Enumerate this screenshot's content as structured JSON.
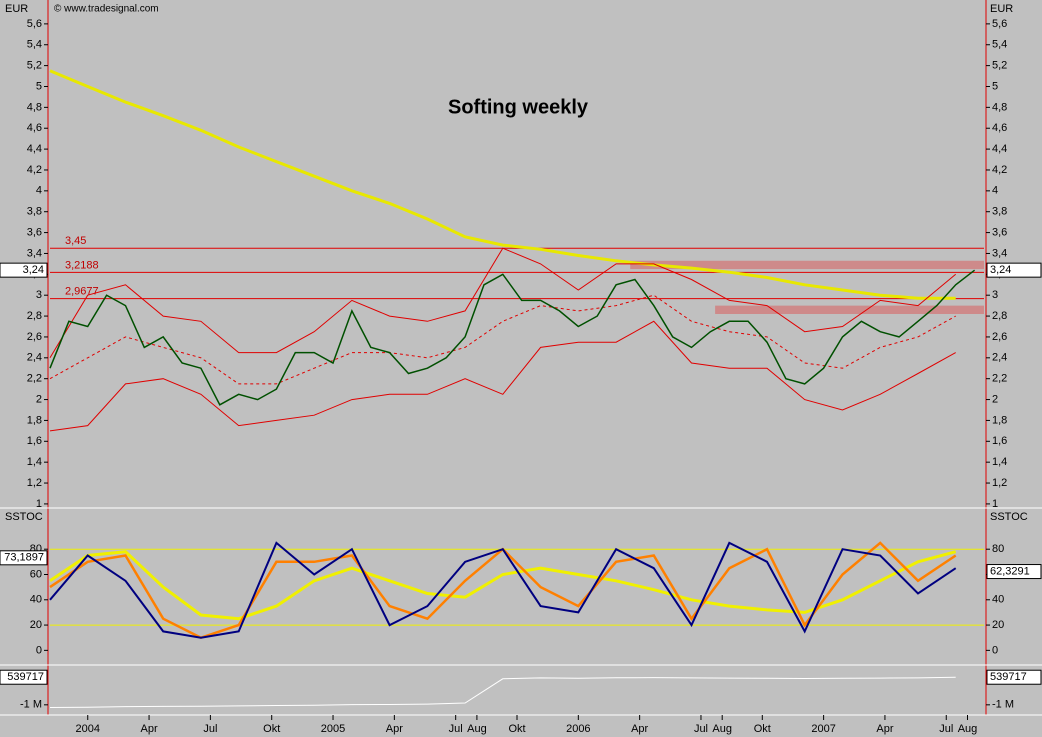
{
  "chart_data": [
    {
      "type": "line",
      "title": "Softing weekly",
      "unit": "EUR",
      "source": "© www.tradesignal.com",
      "xlim": [
        -8,
        190
      ],
      "ylim": [
        0.98,
        5.8
      ],
      "xticks": [
        {
          "value": 0,
          "label": "2004"
        },
        {
          "value": 13,
          "label": "Apr"
        },
        {
          "value": 26,
          "label": "Jul"
        },
        {
          "value": 39,
          "label": "Okt"
        },
        {
          "value": 52,
          "label": "2005"
        },
        {
          "value": 65,
          "label": "Apr"
        },
        {
          "value": 78,
          "label": "Jul"
        },
        {
          "value": 82.5,
          "label": "Aug"
        },
        {
          "value": 91,
          "label": "Okt"
        },
        {
          "value": 104,
          "label": "2006"
        },
        {
          "value": 117,
          "label": "Apr"
        },
        {
          "value": 130,
          "label": "Jul"
        },
        {
          "value": 134.5,
          "label": "Aug"
        },
        {
          "value": 143,
          "label": "Okt"
        },
        {
          "value": 156,
          "label": "2007"
        },
        {
          "value": 169,
          "label": "Apr"
        },
        {
          "value": 182,
          "label": "Jul"
        },
        {
          "value": 186.5,
          "label": "Aug"
        }
      ],
      "yticks": [
        1,
        {
          "value": 1.2,
          "label": "1,2"
        },
        {
          "value": 1.4,
          "label": "1,4"
        },
        {
          "value": 1.6,
          "label": "1,6"
        },
        {
          "value": 1.8,
          "label": "1,8"
        },
        2,
        {
          "value": 2.2,
          "label": "2,2"
        },
        {
          "value": 2.4,
          "label": "2,4"
        },
        {
          "value": 2.6,
          "label": "2,6"
        },
        {
          "value": 2.8,
          "label": "2,8"
        },
        3,
        {
          "value": 3.2,
          "label": "3,2"
        },
        {
          "value": 3.4,
          "label": "3,4"
        },
        {
          "value": 3.6,
          "label": "3,6"
        },
        {
          "value": 3.8,
          "label": "3,8"
        },
        4,
        {
          "value": 4.2,
          "label": "4,2"
        },
        {
          "value": 4.4,
          "label": "4,4"
        },
        {
          "value": 4.6,
          "label": "4,6"
        },
        {
          "value": 4.8,
          "label": "4,8"
        },
        5,
        {
          "value": 5.2,
          "label": "5,2"
        },
        {
          "value": 5.4,
          "label": "5,4"
        },
        {
          "value": 5.6,
          "label": "5,6"
        }
      ],
      "levels": [
        {
          "value": 3.45,
          "label": "3,45"
        },
        {
          "value": 3.2188,
          "label": "3,2188"
        },
        {
          "value": 2.9677,
          "label": "2,9677"
        }
      ],
      "zones": [
        {
          "x": [
            115,
            190
          ],
          "y": [
            3.25,
            3.33
          ]
        },
        {
          "x": [
            133,
            190
          ],
          "y": [
            2.82,
            2.9
          ]
        }
      ],
      "last_price": {
        "value": 3.24,
        "label": "3,24"
      },
      "series": [
        {
          "color": "#e8e800",
          "width": 3,
          "x": [
            -8,
            0,
            8,
            16,
            24,
            32,
            40,
            48,
            56,
            64,
            72,
            80,
            88,
            96,
            104,
            112,
            120,
            128,
            136,
            144,
            152,
            160,
            168,
            176,
            184
          ],
          "values": [
            5.15,
            5.0,
            4.85,
            4.72,
            4.58,
            4.42,
            4.28,
            4.14,
            4.0,
            3.88,
            3.73,
            3.56,
            3.48,
            3.44,
            3.38,
            3.33,
            3.29,
            3.26,
            3.22,
            3.17,
            3.1,
            3.05,
            3.0,
            2.97,
            2.97
          ]
        },
        {
          "color": "#e00000",
          "width": 1,
          "x": [
            -8,
            0,
            8,
            16,
            24,
            32,
            40,
            48,
            56,
            64,
            72,
            80,
            88,
            96,
            104,
            112,
            120,
            128,
            136,
            144,
            152,
            160,
            168,
            176,
            184
          ],
          "values": [
            2.4,
            3.0,
            3.1,
            2.8,
            2.75,
            2.45,
            2.45,
            2.65,
            2.95,
            2.8,
            2.75,
            2.85,
            3.45,
            3.3,
            3.05,
            3.3,
            3.3,
            3.15,
            2.95,
            2.9,
            2.65,
            2.7,
            2.95,
            2.9,
            3.2
          ]
        },
        {
          "color": "#e00000",
          "width": 1,
          "style": "dashed",
          "x": [
            -8,
            0,
            8,
            16,
            24,
            32,
            40,
            48,
            56,
            64,
            72,
            80,
            88,
            96,
            104,
            112,
            120,
            128,
            136,
            144,
            152,
            160,
            168,
            176,
            184
          ],
          "values": [
            2.2,
            2.4,
            2.6,
            2.5,
            2.4,
            2.15,
            2.15,
            2.3,
            2.45,
            2.45,
            2.4,
            2.5,
            2.75,
            2.9,
            2.85,
            2.9,
            3.0,
            2.75,
            2.65,
            2.6,
            2.35,
            2.3,
            2.5,
            2.6,
            2.8
          ]
        },
        {
          "color": "#e00000",
          "width": 1,
          "x": [
            -8,
            0,
            8,
            16,
            24,
            32,
            40,
            48,
            56,
            64,
            72,
            80,
            88,
            96,
            104,
            112,
            120,
            128,
            136,
            144,
            152,
            160,
            168,
            176,
            184
          ],
          "values": [
            1.7,
            1.75,
            2.15,
            2.2,
            2.05,
            1.75,
            1.8,
            1.85,
            2.0,
            2.05,
            2.05,
            2.2,
            2.05,
            2.5,
            2.55,
            2.55,
            2.75,
            2.35,
            2.3,
            2.3,
            2.0,
            1.9,
            2.05,
            2.25,
            2.45
          ]
        },
        {
          "color": "#005000",
          "width": 1.5,
          "x": [
            -8,
            -4,
            0,
            4,
            8,
            12,
            16,
            20,
            24,
            28,
            32,
            36,
            40,
            44,
            48,
            52,
            56,
            60,
            64,
            68,
            72,
            76,
            80,
            84,
            88,
            92,
            96,
            100,
            104,
            108,
            112,
            116,
            120,
            124,
            128,
            132,
            136,
            140,
            144,
            148,
            152,
            156,
            160,
            164,
            168,
            172,
            176,
            180,
            184,
            188
          ],
          "values": [
            2.3,
            2.75,
            2.7,
            3.0,
            2.9,
            2.5,
            2.6,
            2.35,
            2.3,
            1.95,
            2.05,
            2.0,
            2.1,
            2.45,
            2.45,
            2.35,
            2.85,
            2.5,
            2.45,
            2.25,
            2.3,
            2.4,
            2.6,
            3.1,
            3.2,
            2.95,
            2.95,
            2.85,
            2.7,
            2.8,
            3.1,
            3.15,
            2.9,
            2.6,
            2.5,
            2.65,
            2.75,
            2.75,
            2.55,
            2.2,
            2.15,
            2.3,
            2.6,
            2.75,
            2.65,
            2.6,
            2.75,
            2.9,
            3.1,
            3.24
          ]
        }
      ]
    },
    {
      "type": "line",
      "title": "SSTOC",
      "ylim": [
        -10,
        111
      ],
      "yticks": [
        0,
        20,
        40,
        60,
        80
      ],
      "levels": [
        80,
        20
      ],
      "markers": [
        {
          "value": 73.1897,
          "label": "73,1897"
        },
        {
          "value": 62.3291,
          "label": "62,3291"
        }
      ],
      "series": [
        {
          "color": "#f0f000",
          "width": 3,
          "x": [
            -8,
            0,
            8,
            16,
            24,
            32,
            40,
            48,
            56,
            64,
            72,
            80,
            88,
            96,
            104,
            112,
            120,
            128,
            136,
            144,
            152,
            160,
            168,
            176,
            184
          ],
          "values": [
            55,
            75,
            78,
            50,
            28,
            25,
            35,
            55,
            65,
            55,
            45,
            42,
            60,
            65,
            60,
            55,
            48,
            40,
            35,
            32,
            30,
            40,
            55,
            70,
            78
          ]
        },
        {
          "color": "#ff8000",
          "width": 2.5,
          "x": [
            -8,
            0,
            8,
            16,
            24,
            32,
            40,
            48,
            56,
            64,
            72,
            80,
            88,
            96,
            104,
            112,
            120,
            128,
            136,
            144,
            152,
            160,
            168,
            176,
            184
          ],
          "values": [
            50,
            70,
            75,
            25,
            10,
            20,
            70,
            70,
            75,
            35,
            25,
            55,
            80,
            50,
            35,
            70,
            75,
            25,
            65,
            80,
            20,
            60,
            85,
            55,
            75
          ]
        },
        {
          "color": "#000080",
          "width": 2,
          "x": [
            -8,
            0,
            8,
            16,
            24,
            32,
            40,
            48,
            56,
            64,
            72,
            80,
            88,
            96,
            104,
            112,
            120,
            128,
            136,
            144,
            152,
            160,
            168,
            176,
            184
          ],
          "values": [
            40,
            75,
            55,
            15,
            10,
            15,
            85,
            60,
            80,
            20,
            35,
            70,
            80,
            35,
            30,
            80,
            65,
            20,
            85,
            70,
            15,
            80,
            75,
            45,
            65
          ]
        }
      ]
    },
    {
      "type": "line",
      "ylim": [
        -1456000,
        1110000
      ],
      "yticks": [
        {
          "value": -1000000,
          "label": "-1 M"
        }
      ],
      "marker": 539717,
      "series": [
        {
          "color": "#ffffff",
          "width": 1,
          "x": [
            -8,
            0,
            8,
            16,
            24,
            32,
            40,
            48,
            56,
            64,
            72,
            80,
            88,
            96,
            104,
            112,
            120,
            128,
            136,
            144,
            152,
            160,
            168,
            176,
            184
          ],
          "values": [
            -1150000,
            -1130000,
            -1100000,
            -1090000,
            -1080000,
            -1060000,
            -1040000,
            -1020000,
            -990000,
            -980000,
            -960000,
            -900000,
            450000,
            500000,
            480000,
            510000,
            520000,
            500000,
            490000,
            480000,
            470000,
            480000,
            490000,
            500000,
            539717
          ]
        }
      ]
    }
  ]
}
